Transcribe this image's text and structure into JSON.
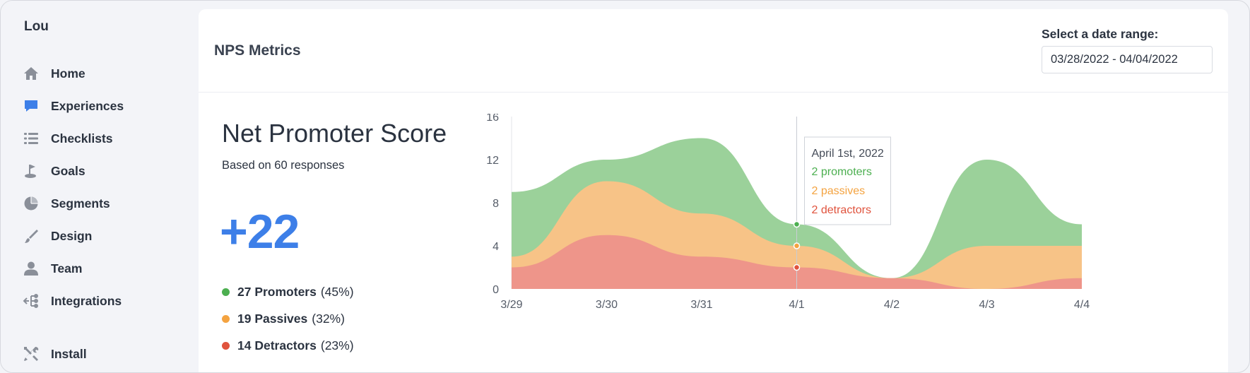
{
  "app": {
    "brand": "Lou"
  },
  "sidebar": {
    "items": [
      {
        "label": "Home",
        "icon": "home-icon",
        "color": "#8a8f99"
      },
      {
        "label": "Experiences",
        "icon": "chat-bubble-icon",
        "color": "#3d7fe8"
      },
      {
        "label": "Checklists",
        "icon": "list-icon",
        "color": "#8a8f99"
      },
      {
        "label": "Goals",
        "icon": "golf-flag-icon",
        "color": "#8a8f99"
      },
      {
        "label": "Segments",
        "icon": "pie-icon",
        "color": "#8a8f99"
      },
      {
        "label": "Design",
        "icon": "paintbrush-icon",
        "color": "#8a8f99"
      },
      {
        "label": "Team",
        "icon": "user-icon",
        "color": "#8a8f99"
      },
      {
        "label": "Integrations",
        "icon": "integrations-icon",
        "color": "#8a8f99"
      }
    ],
    "install": {
      "label": "Install",
      "icon": "tools-icon"
    }
  },
  "header": {
    "title": "NPS Metrics",
    "date_range_label": "Select a date range:",
    "date_range_value": "03/28/2022 - 04/04/2022"
  },
  "nps": {
    "title": "Net Promoter Score",
    "subtitle": "Based on 60 responses",
    "score": "+22",
    "breakdown": [
      {
        "label": "27 Promoters",
        "pct": "(45%)",
        "color": "#4caf50"
      },
      {
        "label": "19 Passives",
        "pct": "(32%)",
        "color": "#f4a340"
      },
      {
        "label": "14 Detractors",
        "pct": "(23%)",
        "color": "#e0533d"
      }
    ]
  },
  "chart_data": {
    "type": "area",
    "stacked": true,
    "categories": [
      "3/29",
      "3/30",
      "3/31",
      "4/1",
      "4/2",
      "4/3",
      "4/4"
    ],
    "ylim": [
      0,
      16
    ],
    "yticks": [
      0,
      4,
      8,
      12,
      16
    ],
    "series": [
      {
        "name": "detractors",
        "color": "#ee958a",
        "values": [
          2,
          5,
          3,
          2,
          1,
          0,
          1
        ]
      },
      {
        "name": "passives",
        "color": "#f7c387",
        "values": [
          1,
          5,
          4,
          2,
          0,
          4,
          3
        ]
      },
      {
        "name": "promoters",
        "color": "#9bd19a",
        "values": [
          6,
          2,
          7,
          2,
          0,
          8,
          2
        ]
      }
    ],
    "tooltip": {
      "title": "April 1st, 2022",
      "lines": [
        {
          "text": "2 promoters",
          "color": "#4caf50"
        },
        {
          "text": "2 passives",
          "color": "#f4a340"
        },
        {
          "text": "2 detractors",
          "color": "#e0533d"
        }
      ]
    }
  }
}
